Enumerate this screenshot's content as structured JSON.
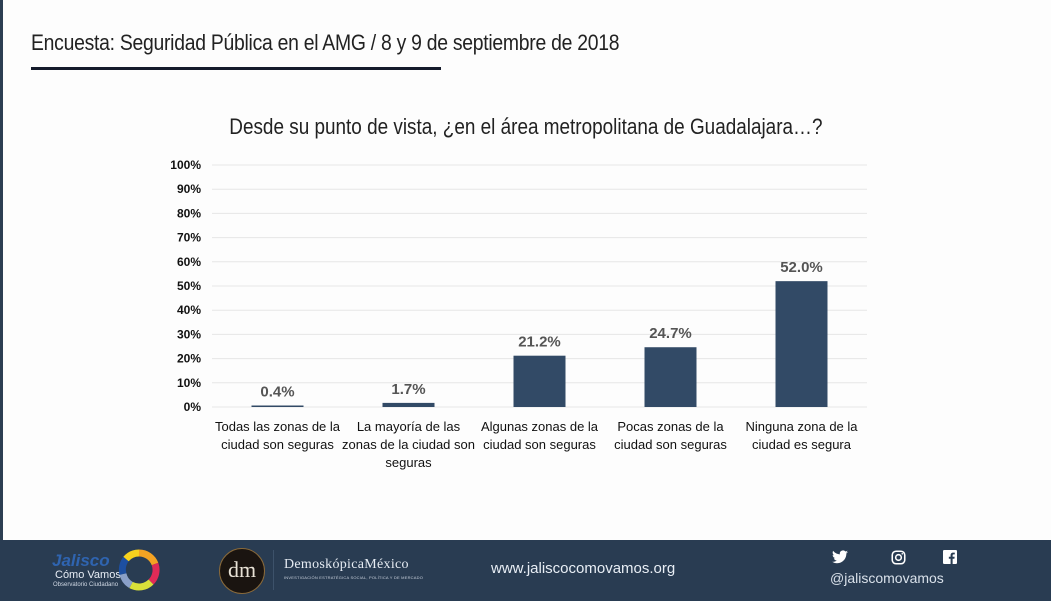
{
  "header": {
    "title": "Encuesta: Seguridad Pública en el AMG / 8 y 9 de septiembre de 2018"
  },
  "chart_data": {
    "type": "bar",
    "title": "Desde su punto de vista, ¿en el área metropolitana de Guadalajara…?",
    "xlabel": "",
    "ylabel": "",
    "ylim": [
      0,
      100
    ],
    "yticks": [
      "0%",
      "10%",
      "20%",
      "30%",
      "40%",
      "50%",
      "60%",
      "70%",
      "80%",
      "90%",
      "100%"
    ],
    "grid": true,
    "bar_color": "#324a66",
    "categories": [
      "Todas las zonas de la ciudad son seguras",
      "La mayoría de las zonas de la ciudad son seguras",
      "Algunas zonas de la ciudad son seguras",
      "Pocas zonas de la ciudad son seguras",
      "Ninguna zona de la ciudad es segura"
    ],
    "values": [
      0.4,
      1.7,
      21.2,
      24.7,
      52.0
    ],
    "data_labels": [
      "0.4%",
      "1.7%",
      "21.2%",
      "24.7%",
      "52.0%"
    ]
  },
  "footer": {
    "jalisco_logo": {
      "word": "Jalisco",
      "line2": "Cómo Vamos",
      "line3": "Observatorio Ciudadano"
    },
    "demoskopica_logo": {
      "badge": "dm",
      "name": "DemoskópicaMéxico",
      "subtitle": "INVESTIGACIÓN ESTRATÉGICA SOCIAL, POLÍTICA Y DE MERCADO"
    },
    "website": "www.jaliscocomovamos.org",
    "social_icons": [
      "twitter-icon",
      "instagram-icon",
      "facebook-icon"
    ],
    "social_handle": "@jaliscomovamos",
    "background_color": "#293c52"
  }
}
